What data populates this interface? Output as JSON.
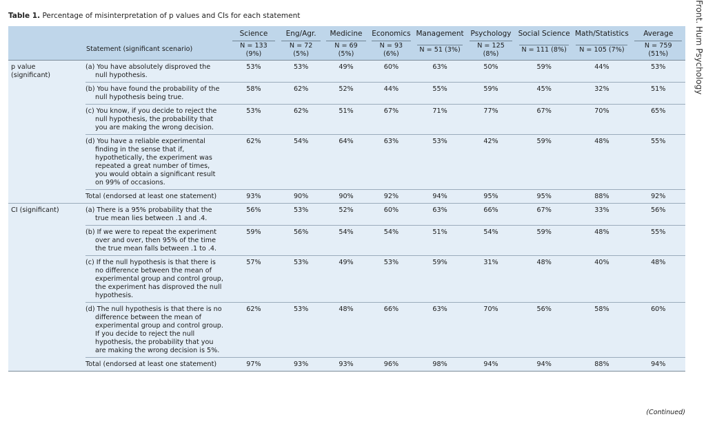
{
  "caption": {
    "label": "Table 1.",
    "text": "Percentage of misinterpretation of p values and CIs for each statement"
  },
  "side_text": "Front. Hum Psychology",
  "header": {
    "statement_label": "Statement (significant scenario)",
    "columns": [
      {
        "name": "Science",
        "n": "N = 133 (9%)"
      },
      {
        "name": "Eng/Agr.",
        "n": "N = 72 (5%)"
      },
      {
        "name": "Medicine",
        "n": "N = 69 (5%)"
      },
      {
        "name": "Economics",
        "n": "N = 93 (6%)"
      },
      {
        "name": "Management",
        "n": "N = 51 (3%)"
      },
      {
        "name": "Psychology",
        "n": "N = 125 (8%)"
      },
      {
        "name": "Social Science",
        "n": "N = 111 (8%)"
      },
      {
        "name": "Math/Statistics",
        "n": "N = 105 (7%)"
      },
      {
        "name": "Average",
        "n": "N = 759 (51%)"
      }
    ]
  },
  "groups": [
    {
      "label": "p value\n(significant)",
      "rows": [
        {
          "statement": "(a) You have absolutely disproved the null hypothesis.",
          "values": [
            "53%",
            "53%",
            "49%",
            "60%",
            "63%",
            "50%",
            "59%",
            "44%",
            "53%"
          ]
        },
        {
          "statement": "(b) You have found the probability of the null hypothesis being true.",
          "values": [
            "58%",
            "62%",
            "52%",
            "44%",
            "55%",
            "59%",
            "45%",
            "32%",
            "51%"
          ]
        },
        {
          "statement": "(c) You know, if you decide to reject the null hypothesis, the probability that you are making the wrong decision.",
          "values": [
            "53%",
            "62%",
            "51%",
            "67%",
            "71%",
            "77%",
            "67%",
            "70%",
            "65%"
          ]
        },
        {
          "statement": "(d) You have a reliable experimental finding in the sense that if, hypothetically, the experiment was repeated a great number of times, you would obtain a significant result on 99% of occasions.",
          "values": [
            "62%",
            "54%",
            "64%",
            "63%",
            "53%",
            "42%",
            "59%",
            "48%",
            "55%"
          ]
        }
      ],
      "total": {
        "statement": "Total (endorsed at least one statement)",
        "values": [
          "93%",
          "90%",
          "90%",
          "92%",
          "94%",
          "95%",
          "95%",
          "88%",
          "92%"
        ]
      }
    },
    {
      "label": "CI (significant)",
      "rows": [
        {
          "statement": "(a) There is a 95% probability that the true mean lies between .1 and .4.",
          "values": [
            "56%",
            "53%",
            "52%",
            "60%",
            "63%",
            "66%",
            "67%",
            "33%",
            "56%"
          ]
        },
        {
          "statement": "(b) If we were to repeat the experiment over and over, then 95% of the time the true mean falls between .1 to .4.",
          "values": [
            "59%",
            "56%",
            "54%",
            "54%",
            "51%",
            "54%",
            "59%",
            "48%",
            "55%"
          ]
        },
        {
          "statement": "(c) If the null hypothesis is that there is no difference between the mean of experimental group and control group, the experiment has disproved the null hypothesis.",
          "values": [
            "57%",
            "53%",
            "49%",
            "53%",
            "59%",
            "31%",
            "48%",
            "40%",
            "48%"
          ]
        },
        {
          "statement": "(d) The null hypothesis is that there is no difference between the mean of experimental group and control group. If you decide to reject the null hypothesis, the probability that you are making the wrong decision is 5%.",
          "values": [
            "62%",
            "53%",
            "48%",
            "66%",
            "63%",
            "70%",
            "56%",
            "58%",
            "60%"
          ]
        }
      ],
      "total": {
        "statement": "Total (endorsed at least one statement)",
        "values": [
          "97%",
          "93%",
          "93%",
          "96%",
          "98%",
          "94%",
          "94%",
          "88%",
          "94%"
        ]
      }
    }
  ],
  "footer": {
    "continued": "(Continued)"
  }
}
